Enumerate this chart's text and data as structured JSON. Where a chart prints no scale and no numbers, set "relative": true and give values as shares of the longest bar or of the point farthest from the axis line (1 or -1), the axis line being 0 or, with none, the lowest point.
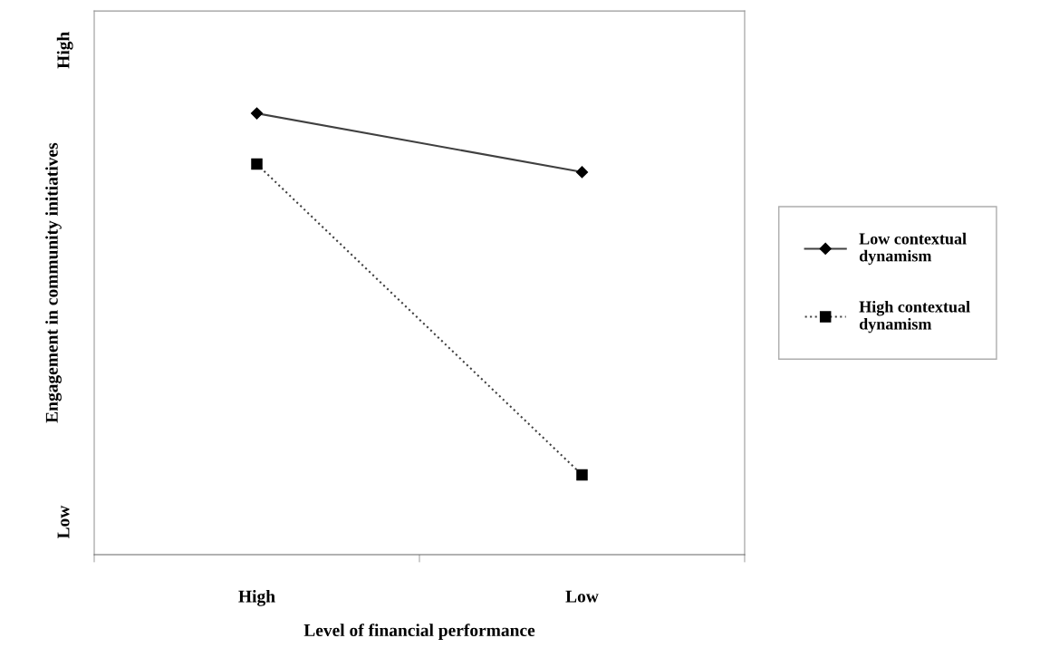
{
  "chart_data": {
    "type": "line",
    "xlabel": "Level of financial performance",
    "ylabel": "Engagement in community initiatives",
    "categories": [
      "High",
      "Low"
    ],
    "relative": true,
    "legend": "right",
    "grid": false,
    "annotations": [
      "High",
      "Low"
    ],
    "series": [
      {
        "name": "Low contextual dynamism",
        "color": "#404040",
        "values": [
          1.0,
          0.867
        ],
        "marker": "diamond",
        "line_style": "solid"
      },
      {
        "name": "High contextual dynamism",
        "color": "#404040",
        "values": [
          0.885,
          0.181
        ],
        "marker": "square",
        "line_style": "dotted"
      }
    ]
  }
}
